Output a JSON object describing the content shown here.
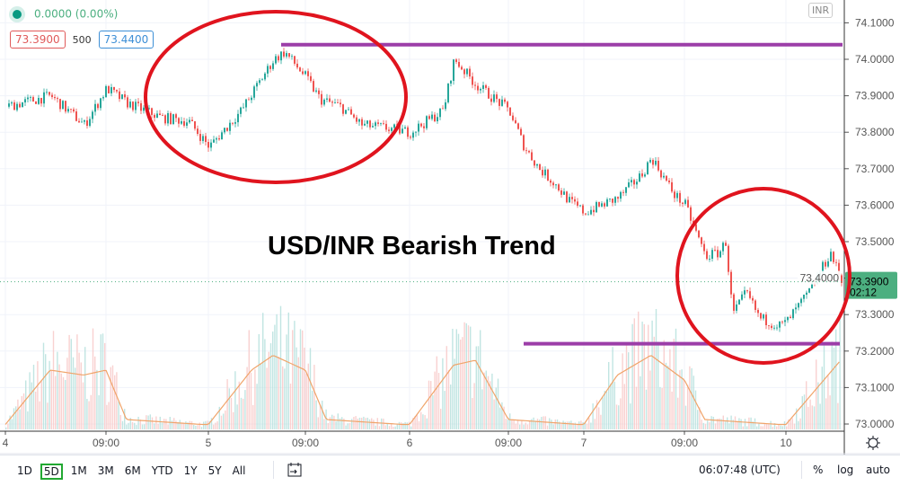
{
  "header": {
    "change": "0.0000 (0.00%)",
    "bid": "73.3900",
    "quantity": "500",
    "ask": "73.4400",
    "currency_badge": "INR"
  },
  "annotation_title": "USD/INR Bearish Trend",
  "price_label": {
    "price": "73.3900",
    "countdown": "02:12"
  },
  "toolbar": {
    "timeframes": [
      "1D",
      "5D",
      "1M",
      "3M",
      "6M",
      "YTD",
      "1Y",
      "5Y",
      "All"
    ],
    "active_timeframe": "5D",
    "clock": "06:07:48 (UTC)",
    "percent": "%",
    "log": "log",
    "auto": "auto"
  },
  "colors": {
    "up": "#26a69a",
    "down": "#ef5350",
    "annotation_circle": "#e0141e",
    "annotation_line": "#9c3ea8",
    "volume_ma": "#f0a46a",
    "last_price": "#4caf80"
  },
  "chart_data": {
    "type": "candlestick",
    "y_ticks": [
      "74.1000",
      "74.0000",
      "73.9000",
      "73.8000",
      "73.7000",
      "73.6000",
      "73.5000",
      "73.4000",
      "73.3000",
      "73.2000",
      "73.1000",
      "73.0000"
    ],
    "ylim": [
      73.0,
      74.1
    ],
    "x_ticks": [
      "4",
      "09:00",
      "5",
      "09:00",
      "6",
      "09:00",
      "7",
      "09:00",
      "10"
    ],
    "grid": true,
    "last_price": 73.39,
    "price_path": [
      [
        "4 00:00",
        73.87
      ],
      [
        "4 04:00",
        73.9
      ],
      [
        "4 07:00",
        73.82
      ],
      [
        "4 09:00",
        73.92
      ],
      [
        "4 12:00",
        73.88
      ],
      [
        "4 17:00",
        73.84
      ],
      [
        "4 21:00",
        73.83
      ],
      [
        "5 00:00",
        73.76
      ],
      [
        "5 03:00",
        73.86
      ],
      [
        "5 06:00",
        74.0
      ],
      [
        "5 07:00",
        74.02
      ],
      [
        "5 09:00",
        73.95
      ],
      [
        "5 11:00",
        73.89
      ],
      [
        "5 14:00",
        73.87
      ],
      [
        "5 17:00",
        73.82
      ],
      [
        "5 21:00",
        73.81
      ],
      [
        "6 00:00",
        73.8
      ],
      [
        "6 03:00",
        73.86
      ],
      [
        "6 04:00",
        74.0
      ],
      [
        "6 06:00",
        73.93
      ],
      [
        "6 09:00",
        73.86
      ],
      [
        "6 12:00",
        73.76
      ],
      [
        "6 15:00",
        73.7
      ],
      [
        "6 18:00",
        73.66
      ],
      [
        "6 21:00",
        73.61
      ],
      [
        "7 00:00",
        73.58
      ],
      [
        "7 03:00",
        73.62
      ],
      [
        "7 05:00",
        73.68
      ],
      [
        "7 06:00",
        73.73
      ],
      [
        "7 08:00",
        73.63
      ],
      [
        "7 09:00",
        73.6
      ],
      [
        "7 12:00",
        73.46
      ],
      [
        "7 14:00",
        73.47
      ],
      [
        "7 15:00",
        73.5
      ],
      [
        "7 16:00",
        73.3
      ],
      [
        "7 18:00",
        73.36
      ],
      [
        "7 20:00",
        73.29
      ],
      [
        "7 23:00",
        73.27
      ],
      [
        "10 00:00",
        73.28
      ],
      [
        "10 02:00",
        73.36
      ],
      [
        "10 04:00",
        73.47
      ],
      [
        "10 05:00",
        73.39
      ]
    ],
    "volume_ma_relative": [
      [
        "4 00:00",
        0.05
      ],
      [
        "4 04:00",
        0.6
      ],
      [
        "4 07:00",
        0.55
      ],
      [
        "4 09:00",
        0.6
      ],
      [
        "4 12:00",
        0.1
      ],
      [
        "4 23:00",
        0.05
      ],
      [
        "5 00:00",
        0.05
      ],
      [
        "5 04:00",
        0.6
      ],
      [
        "5 06:00",
        0.75
      ],
      [
        "5 09:00",
        0.6
      ],
      [
        "5 12:00",
        0.1
      ],
      [
        "5 23:00",
        0.05
      ],
      [
        "6 00:00",
        0.05
      ],
      [
        "6 04:00",
        0.65
      ],
      [
        "6 06:00",
        0.7
      ],
      [
        "6 09:00",
        0.1
      ],
      [
        "6 23:00",
        0.05
      ],
      [
        "7 00:00",
        0.05
      ],
      [
        "7 03:00",
        0.55
      ],
      [
        "7 06:00",
        0.75
      ],
      [
        "7 09:00",
        0.5
      ],
      [
        "7 12:00",
        0.1
      ],
      [
        "7 23:00",
        0.05
      ],
      [
        "10 00:00",
        0.05
      ],
      [
        "10 05:00",
        0.7
      ]
    ],
    "annotations": {
      "resistance_line": 74.04,
      "support_line": 73.22
    }
  }
}
